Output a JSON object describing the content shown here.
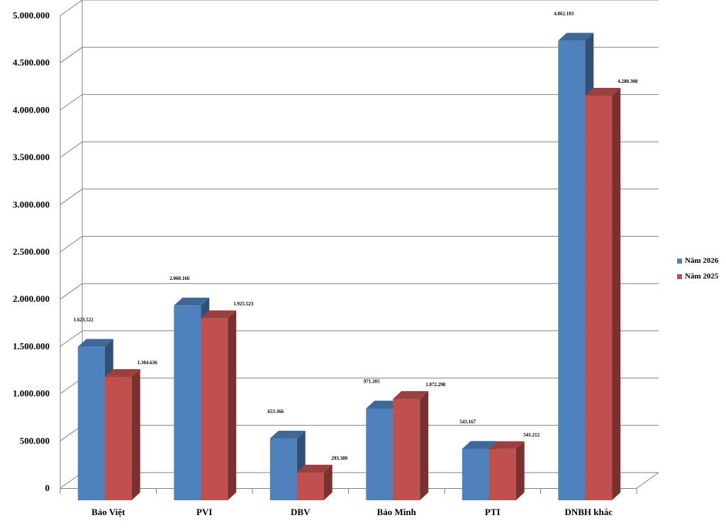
{
  "chart_data": {
    "type": "bar",
    "categories": [
      "Bảo Việt",
      "PVI",
      "DBV",
      "Bảo Minh",
      "PTI",
      "DNBH khác"
    ],
    "series": [
      {
        "name": "Năm 2026",
        "color": "#4F81BD",
        "values": [
          1623522,
          2060166,
          653366,
          971205,
          543167,
          4862103
        ],
        "labels": [
          "1.623.522",
          "2.060.166",
          "653.366",
          "971.205",
          "543.167",
          "4.862.103"
        ]
      },
      {
        "name": "Năm 2025",
        "color": "#C0504D",
        "values": [
          1304636,
          1925523,
          293389,
          1072298,
          541212,
          4280308
        ],
        "labels": [
          "1.304.636",
          "1.925.523",
          "293.389",
          "1.072.298",
          "541.212",
          "4.280.308"
        ]
      }
    ],
    "ylim": [
      0,
      5000000
    ],
    "yticks": [
      {
        "value": 0,
        "label": "0"
      },
      {
        "value": 500000,
        "label": "500.000"
      },
      {
        "value": 1000000,
        "label": "1.000.000"
      },
      {
        "value": 1500000,
        "label": "1.500.000"
      },
      {
        "value": 2000000,
        "label": "2.000.000"
      },
      {
        "value": 2500000,
        "label": "2.500.000"
      },
      {
        "value": 3000000,
        "label": "3.000.000"
      },
      {
        "value": 3500000,
        "label": "3.500.000"
      },
      {
        "value": 4000000,
        "label": "4.000.000"
      },
      {
        "value": 4500000,
        "label": "4.500.000"
      },
      {
        "value": 5000000,
        "label": "5.000.000"
      }
    ],
    "grid": true,
    "legend_position": "right",
    "style": "3d-clustered-column"
  }
}
